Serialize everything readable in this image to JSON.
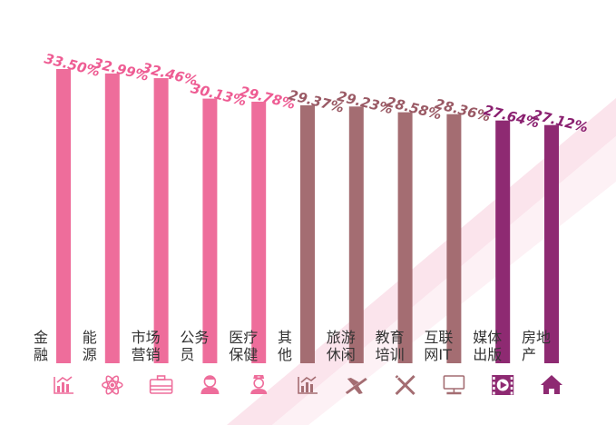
{
  "chart_data": {
    "type": "bar",
    "categories": [
      "金融",
      "能源",
      "市场营销",
      "公务员",
      "医疗保健",
      "其他",
      "旅游休闲",
      "教育培训",
      "互联网IT",
      "媒体出版",
      "房地产"
    ],
    "category_lines": [
      [
        "金",
        "融"
      ],
      [
        "能",
        "源"
      ],
      [
        "市场",
        "营销"
      ],
      [
        "公务",
        "员"
      ],
      [
        "医疗",
        "保健"
      ],
      [
        "其",
        "他"
      ],
      [
        "旅游",
        "休闲"
      ],
      [
        "教育",
        "培训"
      ],
      [
        "互联",
        "网IT"
      ],
      [
        "媒体",
        "出版"
      ],
      [
        "房地",
        "产"
      ]
    ],
    "values": [
      33.5,
      32.99,
      32.46,
      30.13,
      29.78,
      29.37,
      29.23,
      28.58,
      28.36,
      27.64,
      27.12
    ],
    "value_labels": [
      "33.50%",
      "32.99%",
      "32.46%",
      "30.13%",
      "29.78%",
      "29.37%",
      "29.23%",
      "28.58%",
      "28.36%",
      "27.64%",
      "27.12%"
    ],
    "bar_colors": [
      "#ee6d9b",
      "#ee6d9b",
      "#ee6d9b",
      "#ee6d9b",
      "#ee6d9b",
      "#a46d72",
      "#a46d72",
      "#a46d72",
      "#a46d72",
      "#8e2a72",
      "#8e2a72"
    ],
    "label_colors": [
      "#ee5c93",
      "#ee5c93",
      "#ee5c93",
      "#ee5c93",
      "#ee5c93",
      "#9a5a65",
      "#9a5a65",
      "#9a5a65",
      "#9a5a65",
      "#8a2070",
      "#8a2070"
    ],
    "icons": [
      "chart-icon",
      "atom-icon",
      "briefcase-icon",
      "person-icon",
      "nurse-icon",
      "chart-icon",
      "airplane-icon",
      "pencil-ruler-icon",
      "computer-icon",
      "play-icon",
      "house-icon"
    ],
    "ylim": [
      0,
      34
    ],
    "title": "",
    "xlabel": "",
    "ylabel": ""
  }
}
